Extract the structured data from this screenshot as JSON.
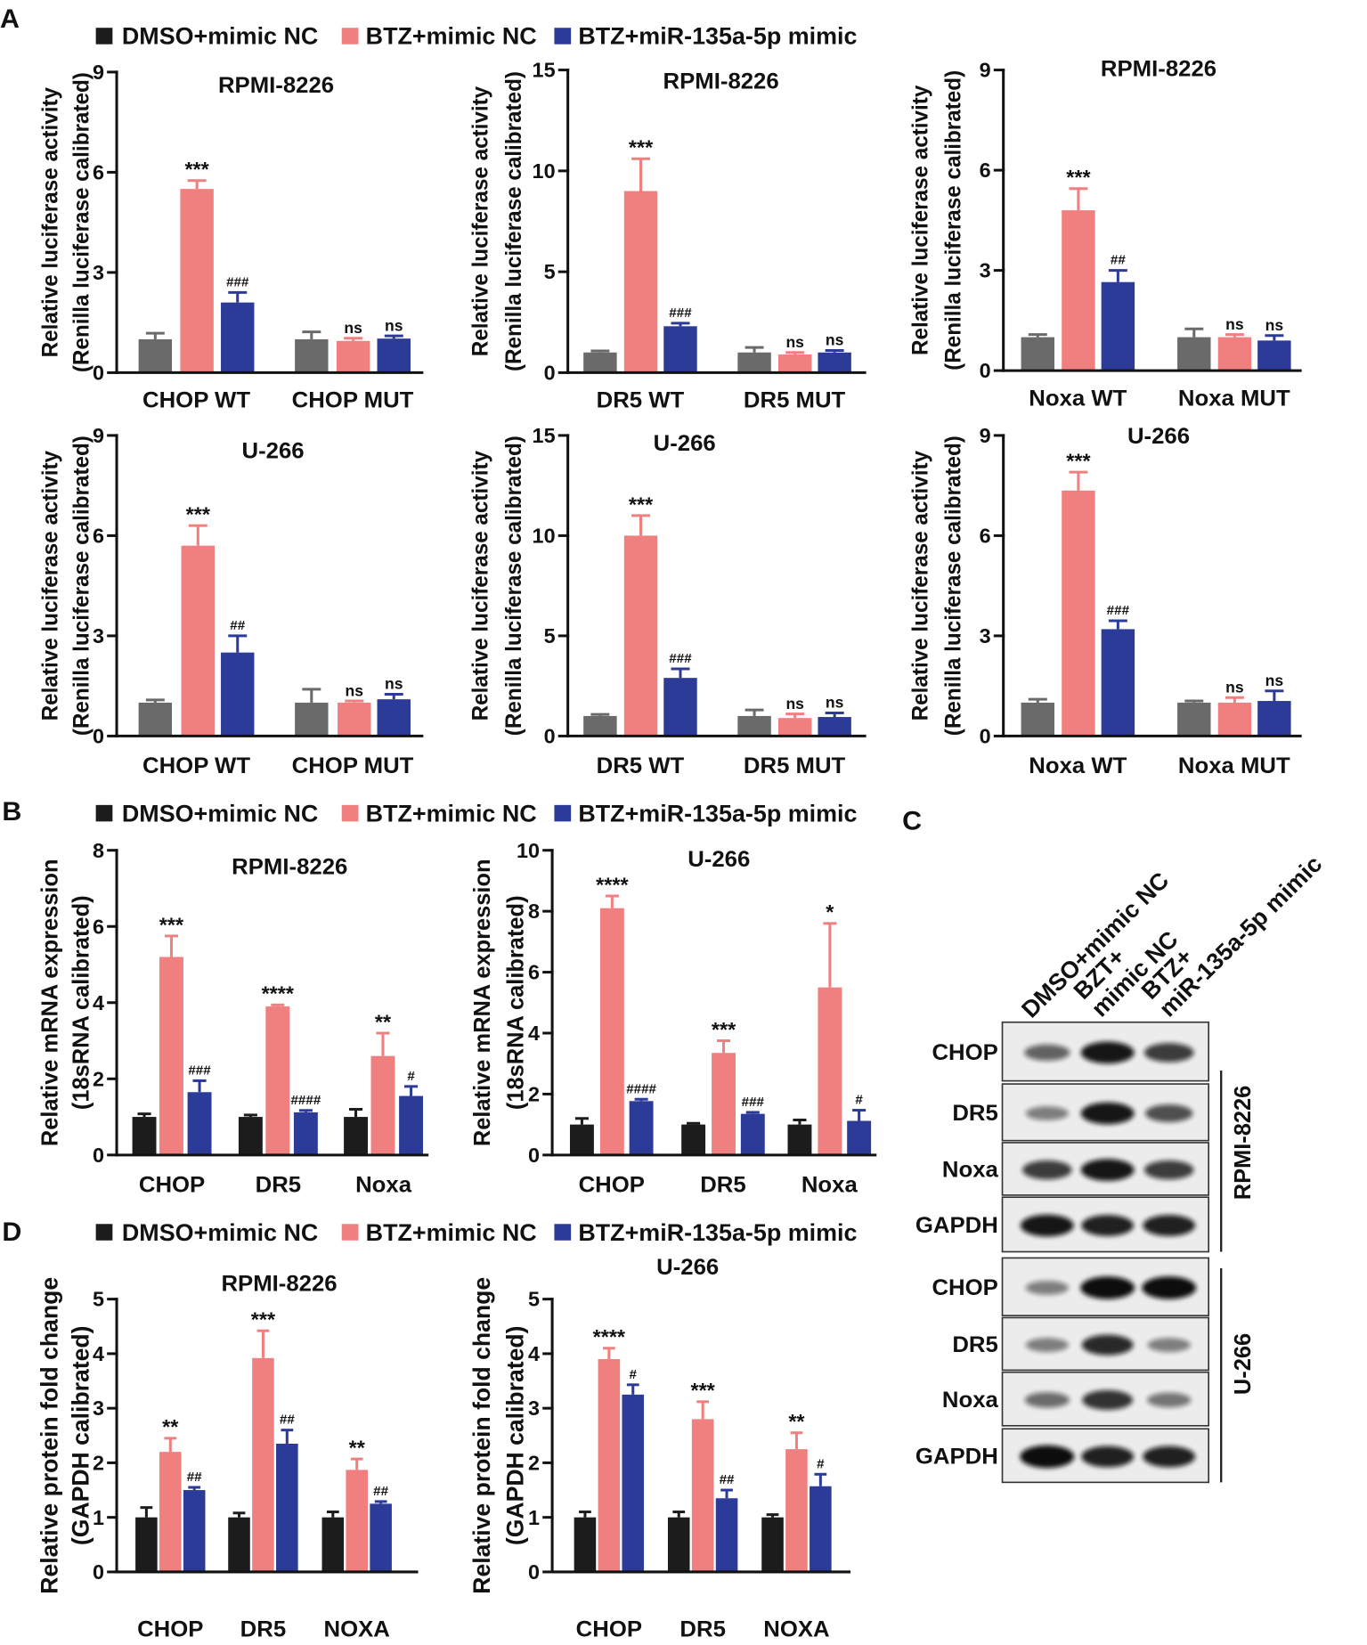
{
  "figure": {
    "panel_letters": {
      "A": "A",
      "B": "B",
      "C": "C",
      "D": "D"
    },
    "legend": [
      "DMSO+mimic NC",
      "BTZ+mimic NC",
      "BTZ+miR-135a-5p mimic"
    ],
    "colors": {
      "dmso": "#1c1c1c",
      "dmso_luciferase": "#6a6a6a",
      "btz": "#f08080",
      "mir": "#2d3b98",
      "axis": "#111111",
      "blot_background": "#ececec",
      "band": "#0d0d0d"
    }
  },
  "chart_data": [
    {
      "type": "bar",
      "title": "RPMI-8226",
      "ylabel": [
        "Relative luciferase activity",
        "(Renilla luciferase calibrated)"
      ],
      "categories": [
        "CHOP WT",
        "CHOP MUT"
      ],
      "ylim": [
        0,
        9
      ],
      "yticks": [
        0,
        3,
        6,
        9
      ],
      "series": [
        {
          "values": [
            1.0,
            1.0
          ],
          "errors": [
            0.18,
            0.22
          ]
        },
        {
          "values": [
            5.5,
            0.95
          ],
          "errors": [
            0.25,
            0.08
          ]
        },
        {
          "values": [
            2.1,
            1.02
          ],
          "errors": [
            0.3,
            0.08
          ]
        }
      ],
      "annotations": [
        [
          null,
          "***",
          "###"
        ],
        [
          null,
          "ns",
          "ns"
        ]
      ]
    },
    {
      "type": "bar",
      "title": "RPMI-8226",
      "ylabel": [
        "Relative luciferase activity",
        "(Renilla luciferase calibrated)"
      ],
      "categories": [
        "DR5 WT",
        "DR5 MUT"
      ],
      "ylim": [
        0,
        15
      ],
      "yticks": [
        0,
        5,
        10,
        15
      ],
      "series": [
        {
          "values": [
            1.0,
            1.0
          ],
          "errors": [
            0.08,
            0.25
          ]
        },
        {
          "values": [
            9.0,
            0.9
          ],
          "errors": [
            1.6,
            0.1
          ]
        },
        {
          "values": [
            2.3,
            1.0
          ],
          "errors": [
            0.15,
            0.1
          ]
        }
      ],
      "annotations": [
        [
          null,
          "***",
          "###"
        ],
        [
          null,
          "ns",
          "ns"
        ]
      ]
    },
    {
      "type": "bar",
      "title": "RPMI-8226",
      "ylabel": [
        "Relative luciferase activity",
        "(Renilla luciferase calibrated)"
      ],
      "categories": [
        "Noxa WT",
        "Noxa MUT"
      ],
      "ylim": [
        0,
        9
      ],
      "yticks": [
        0,
        3,
        6,
        9
      ],
      "series": [
        {
          "values": [
            1.0,
            1.0
          ],
          "errors": [
            0.08,
            0.25
          ]
        },
        {
          "values": [
            4.8,
            1.0
          ],
          "errors": [
            0.65,
            0.08
          ]
        },
        {
          "values": [
            2.65,
            0.9
          ],
          "errors": [
            0.35,
            0.15
          ]
        }
      ],
      "annotations": [
        [
          null,
          "***",
          "##"
        ],
        [
          null,
          "ns",
          "ns"
        ]
      ]
    },
    {
      "type": "bar",
      "title": "U-266",
      "ylabel": [
        "Relative luciferase activity",
        "(Renilla luciferase calibrated)"
      ],
      "categories": [
        "CHOP WT",
        "CHOP MUT"
      ],
      "ylim": [
        0,
        9
      ],
      "yticks": [
        0,
        3,
        6,
        9
      ],
      "series": [
        {
          "values": [
            1.0,
            1.0
          ],
          "errors": [
            0.08,
            0.4
          ]
        },
        {
          "values": [
            5.7,
            1.0
          ],
          "errors": [
            0.6,
            0.05
          ]
        },
        {
          "values": [
            2.5,
            1.1
          ],
          "errors": [
            0.5,
            0.15
          ]
        }
      ],
      "annotations": [
        [
          null,
          "***",
          "##"
        ],
        [
          null,
          "ns",
          "ns"
        ]
      ]
    },
    {
      "type": "bar",
      "title": "U-266",
      "ylabel": [
        "Relative luciferase activity",
        "(Renilla luciferase calibrated)"
      ],
      "categories": [
        "DR5 WT",
        "DR5 MUT"
      ],
      "ylim": [
        0,
        15
      ],
      "yticks": [
        0,
        5,
        10,
        15
      ],
      "series": [
        {
          "values": [
            1.0,
            1.0
          ],
          "errors": [
            0.08,
            0.3
          ]
        },
        {
          "values": [
            10.0,
            0.9
          ],
          "errors": [
            1.0,
            0.2
          ]
        },
        {
          "values": [
            2.9,
            0.95
          ],
          "errors": [
            0.45,
            0.2
          ]
        }
      ],
      "annotations": [
        [
          null,
          "***",
          "###"
        ],
        [
          null,
          "ns",
          "ns"
        ]
      ]
    },
    {
      "type": "bar",
      "title": "U-266",
      "ylabel": [
        "Relative luciferase activity",
        "(Renilla luciferase calibrated)"
      ],
      "categories": [
        "Noxa WT",
        "Noxa MUT"
      ],
      "ylim": [
        0,
        9
      ],
      "yticks": [
        0,
        3,
        6,
        9
      ],
      "series": [
        {
          "values": [
            1.0,
            1.0
          ],
          "errors": [
            0.1,
            0.05
          ]
        },
        {
          "values": [
            7.35,
            1.0
          ],
          "errors": [
            0.55,
            0.15
          ]
        },
        {
          "values": [
            3.2,
            1.05
          ],
          "errors": [
            0.25,
            0.3
          ]
        }
      ],
      "annotations": [
        [
          null,
          "***",
          "###"
        ],
        [
          null,
          "ns",
          "ns"
        ]
      ]
    },
    {
      "type": "bar",
      "title": "RPMI-8226",
      "ylabel": [
        "Relative mRNA expression",
        "(18sRNA calibrated)"
      ],
      "categories": [
        "CHOP",
        "DR5",
        "Noxa"
      ],
      "ylim": [
        0,
        8
      ],
      "yticks": [
        0,
        2,
        4,
        6,
        8
      ],
      "series": [
        {
          "values": [
            1.0,
            1.0,
            1.0
          ],
          "errors": [
            0.08,
            0.05,
            0.2
          ]
        },
        {
          "values": [
            5.2,
            3.9,
            2.6
          ],
          "errors": [
            0.55,
            0.04,
            0.6
          ]
        },
        {
          "values": [
            1.65,
            1.12,
            1.55
          ],
          "errors": [
            0.3,
            0.05,
            0.25
          ]
        }
      ],
      "annotations": [
        [
          null,
          "***",
          "###"
        ],
        [
          null,
          "****",
          "####"
        ],
        [
          null,
          "**",
          "#"
        ]
      ]
    },
    {
      "type": "bar",
      "title": "U-266",
      "ylabel": [
        "Relative mRNA expression",
        "(18sRNA calibrated)"
      ],
      "categories": [
        "CHOP",
        "DR5",
        "Noxa"
      ],
      "ylim": [
        0,
        10
      ],
      "yticks": [
        0,
        2,
        4,
        6,
        8,
        10
      ],
      "series": [
        {
          "values": [
            1.0,
            1.0,
            1.0
          ],
          "errors": [
            0.2,
            0.04,
            0.15
          ]
        },
        {
          "values": [
            8.1,
            3.35,
            5.5
          ],
          "errors": [
            0.4,
            0.4,
            2.1
          ]
        },
        {
          "values": [
            1.77,
            1.35,
            1.12
          ],
          "errors": [
            0.06,
            0.05,
            0.35
          ]
        }
      ],
      "annotations": [
        [
          null,
          "****",
          "####"
        ],
        [
          null,
          "***",
          "###"
        ],
        [
          null,
          "*",
          "#"
        ]
      ]
    },
    {
      "type": "bar",
      "title": "RPMI-8226",
      "ylabel": [
        "Relative protein fold change",
        "(GAPDH calibrated)"
      ],
      "categories": [
        "CHOP",
        "DR5",
        "NOXA"
      ],
      "ylim": [
        0,
        5
      ],
      "yticks": [
        0,
        1,
        2,
        3,
        4,
        5
      ],
      "series": [
        {
          "values": [
            1.0,
            1.0,
            1.0
          ],
          "errors": [
            0.18,
            0.08,
            0.1
          ]
        },
        {
          "values": [
            2.2,
            3.92,
            1.87
          ],
          "errors": [
            0.25,
            0.5,
            0.2
          ]
        },
        {
          "values": [
            1.5,
            2.35,
            1.25
          ],
          "errors": [
            0.05,
            0.25,
            0.04
          ]
        }
      ],
      "annotations": [
        [
          null,
          "**",
          "##"
        ],
        [
          null,
          "***",
          "##"
        ],
        [
          null,
          "**",
          "##"
        ]
      ]
    },
    {
      "type": "bar",
      "title": "U-266",
      "ylabel": [
        "Relative protein fold change",
        "(GAPDH calibrated)"
      ],
      "categories": [
        "CHOP",
        "DR5",
        "NOXA"
      ],
      "ylim": [
        0,
        5
      ],
      "yticks": [
        0,
        1,
        2,
        3,
        4,
        5
      ],
      "series": [
        {
          "values": [
            1.0,
            1.0,
            1.0
          ],
          "errors": [
            0.1,
            0.1,
            0.05
          ]
        },
        {
          "values": [
            3.9,
            2.8,
            2.25
          ],
          "errors": [
            0.2,
            0.32,
            0.3
          ]
        },
        {
          "values": [
            3.25,
            1.35,
            1.57
          ],
          "errors": [
            0.18,
            0.15,
            0.22
          ]
        }
      ],
      "annotations": [
        [
          null,
          "****",
          "#"
        ],
        [
          null,
          "***",
          "##"
        ],
        [
          null,
          "**",
          "#"
        ]
      ]
    }
  ],
  "western_blot": {
    "lanes": [
      [
        "DMSO+mimic NC"
      ],
      [
        "BZT+",
        "mimic NC"
      ],
      [
        "BTZ+",
        "miR-135a-5p mimic"
      ]
    ],
    "groups": [
      {
        "cell_line": "RPMI-8226",
        "rows": [
          {
            "protein": "CHOP",
            "band_intensity": [
              0.55,
              0.95,
              0.75
            ]
          },
          {
            "protein": "DR5",
            "band_intensity": [
              0.4,
              0.95,
              0.65
            ]
          },
          {
            "protein": "Noxa",
            "band_intensity": [
              0.75,
              0.95,
              0.75
            ]
          },
          {
            "protein": "GAPDH",
            "band_intensity": [
              0.95,
              0.9,
              0.9
            ]
          }
        ]
      },
      {
        "cell_line": "U-266",
        "rows": [
          {
            "protein": "CHOP",
            "band_intensity": [
              0.4,
              1.0,
              1.0
            ]
          },
          {
            "protein": "DR5",
            "band_intensity": [
              0.4,
              0.85,
              0.4
            ]
          },
          {
            "protein": "Noxa",
            "band_intensity": [
              0.5,
              0.8,
              0.45
            ]
          },
          {
            "protein": "GAPDH",
            "band_intensity": [
              1.0,
              0.9,
              0.9
            ]
          }
        ]
      }
    ]
  }
}
